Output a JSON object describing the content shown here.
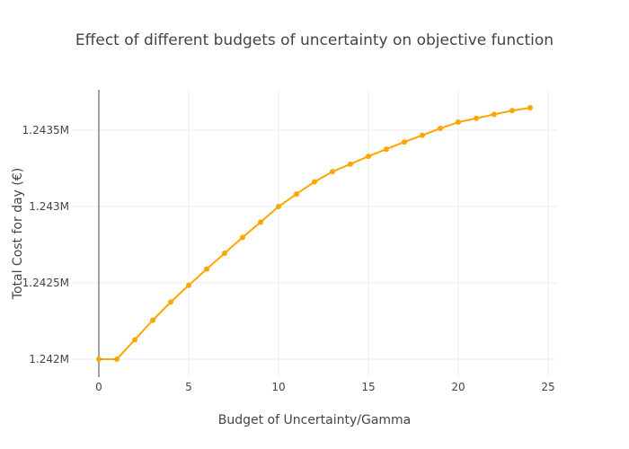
{
  "chart_data": {
    "type": "line",
    "title": "Effect of different budgets of uncertainty on objective function",
    "xlabel": "Budget of Uncertainty/Gamma",
    "ylabel": "Total Cost for day (€)",
    "xlim": [
      -1.5,
      25.5
    ],
    "ylim": [
      1241882,
      1243765
    ],
    "grid": true,
    "x_ticks": [
      0,
      5,
      10,
      15,
      20,
      25
    ],
    "x_tick_labels": [
      "0",
      "5",
      "10",
      "15",
      "20",
      "25"
    ],
    "y_ticks": [
      1242000,
      1242500,
      1243000,
      1243500
    ],
    "y_tick_labels": [
      "1.242M",
      "1.2425M",
      "1.243M",
      "1.2435M"
    ],
    "series": [
      {
        "name": "Total cost",
        "color": "#FFA500",
        "mode": "lines+markers",
        "x": [
          0,
          1,
          2,
          3,
          4,
          5,
          6,
          7,
          8,
          9,
          10,
          11,
          12,
          13,
          14,
          15,
          16,
          17,
          18,
          19,
          20,
          21,
          22,
          23,
          24
        ],
        "y": [
          1242000,
          1242000,
          1242127,
          1242255,
          1242374,
          1242484,
          1242590,
          1242694,
          1242798,
          1242898,
          1243000,
          1243082,
          1243162,
          1243229,
          1243278,
          1243329,
          1243376,
          1243423,
          1243467,
          1243512,
          1243553,
          1243578,
          1243604,
          1243629,
          1243647
        ]
      }
    ]
  }
}
